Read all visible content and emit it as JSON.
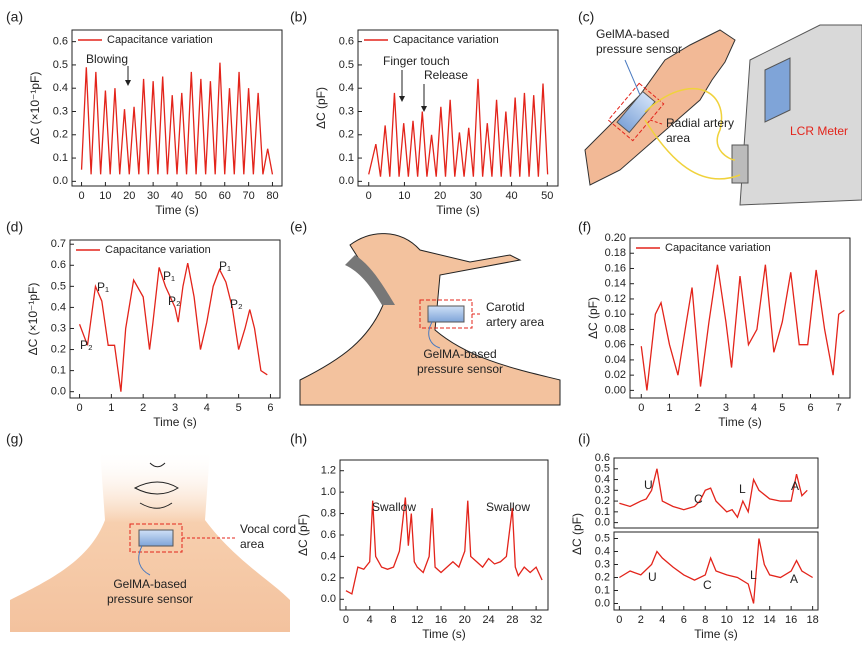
{
  "chart_data": [
    {
      "type": "line",
      "panel": "(a)",
      "xlabel": "Time (s)",
      "ylabel": "ΔC (×10⁻¹pF)",
      "x": [
        0,
        2,
        4,
        6,
        8,
        10,
        12,
        14,
        16,
        18,
        20,
        22,
        24,
        26,
        28,
        30,
        32,
        34,
        36,
        38,
        40,
        42,
        44,
        46,
        48,
        50,
        52,
        54,
        56,
        58,
        60,
        62,
        64,
        66,
        68,
        70,
        72,
        74,
        76,
        78,
        80
      ],
      "series": [
        {
          "name": "Capacitance variation",
          "color": "#e3241b",
          "values": [
            0.05,
            0.49,
            0.03,
            0.47,
            0.03,
            0.39,
            0.03,
            0.4,
            0.03,
            0.31,
            0.03,
            0.32,
            0.03,
            0.44,
            0.03,
            0.43,
            0.03,
            0.45,
            0.03,
            0.37,
            0.03,
            0.38,
            0.03,
            0.47,
            0.03,
            0.44,
            0.03,
            0.43,
            0.03,
            0.51,
            0.03,
            0.4,
            0.03,
            0.47,
            0.03,
            0.4,
            0.03,
            0.38,
            0.03,
            0.14,
            0.03
          ]
        }
      ],
      "xlim": [
        -4,
        84
      ],
      "xticks": [
        0,
        10,
        20,
        30,
        40,
        50,
        60,
        70,
        80
      ],
      "ylim": [
        -0.02,
        0.65
      ],
      "yticks": [
        {
          "value": 0,
          "label": "0.0"
        },
        0.1,
        0.2,
        0.3,
        0.4,
        0.5,
        0.6
      ],
      "annotations": [
        "Blowing"
      ]
    },
    {
      "type": "line",
      "panel": "(b)",
      "xlabel": "Time (s)",
      "ylabel": "ΔC (pF)",
      "x": [
        0,
        2,
        3.3,
        4.6,
        5.9,
        7.2,
        8.5,
        9.8,
        11.1,
        12.4,
        13.7,
        15,
        16.3,
        17.6,
        18.9,
        20.2,
        21.5,
        22.8,
        24.1,
        25.4,
        26.7,
        28,
        29.3,
        30.6,
        31.9,
        33.2,
        34.5,
        35.8,
        37.1,
        38.4,
        39.7,
        41,
        42.3,
        43.6,
        44.9,
        46.2,
        47.5,
        48.8,
        50.1
      ],
      "series": [
        {
          "name": "Capacitance variation",
          "color": "#e3241b",
          "values": [
            0.03,
            0.16,
            0.02,
            0.24,
            0.02,
            0.38,
            0.02,
            0.25,
            0.02,
            0.26,
            0.02,
            0.3,
            0.02,
            0.2,
            0.02,
            0.32,
            0.02,
            0.35,
            0.02,
            0.21,
            0.02,
            0.23,
            0.02,
            0.44,
            0.02,
            0.25,
            0.02,
            0.35,
            0.02,
            0.3,
            0.02,
            0.36,
            0.02,
            0.38,
            0.02,
            0.37,
            0.02,
            0.42,
            0.03
          ]
        }
      ],
      "xlim": [
        -3,
        53
      ],
      "xticks": [
        0,
        10,
        20,
        30,
        40,
        50
      ],
      "ylim": [
        -0.02,
        0.65
      ],
      "yticks": [
        {
          "value": 0,
          "label": "0.0"
        },
        0.1,
        0.2,
        0.3,
        0.4,
        0.5,
        0.6
      ],
      "annotations": [
        "Finger touch",
        "Release"
      ]
    },
    {
      "type": "line",
      "panel": "(d)",
      "xlabel": "Time (s)",
      "ylabel": "ΔC (×10⁻¹pF)",
      "x": [
        0,
        0.25,
        0.5,
        0.7,
        0.9,
        1.1,
        1.3,
        1.45,
        1.7,
        2.0,
        2.2,
        2.3,
        2.5,
        2.7,
        2.85,
        3.0,
        3.1,
        3.25,
        3.4,
        3.6,
        3.8,
        4.0,
        4.2,
        4.4,
        4.6,
        4.8,
        5.0,
        5.2,
        5.35,
        5.5,
        5.7,
        5.9
      ],
      "series": [
        {
          "name": "Capacitance variation",
          "color": "#e3241b",
          "values": [
            0.32,
            0.22,
            0.5,
            0.43,
            0.22,
            0.22,
            0.0,
            0.3,
            0.53,
            0.45,
            0.2,
            0.32,
            0.59,
            0.5,
            0.45,
            0.4,
            0.33,
            0.5,
            0.61,
            0.45,
            0.2,
            0.33,
            0.5,
            0.58,
            0.52,
            0.4,
            0.2,
            0.3,
            0.39,
            0.3,
            0.1,
            0.08
          ]
        }
      ],
      "xlim": [
        -0.3,
        6.3
      ],
      "xticks": [
        0,
        1,
        2,
        3,
        4,
        5,
        6
      ],
      "ylim": [
        -0.03,
        0.72
      ],
      "yticks": [
        {
          "value": 0,
          "label": "0.0"
        },
        0.1,
        0.2,
        0.3,
        0.4,
        0.5,
        0.6,
        0.7
      ],
      "annotations": [
        "P₁",
        "P₂",
        "P₁",
        "P₂",
        "P₁",
        "P₂"
      ]
    },
    {
      "type": "line",
      "panel": "(f)",
      "xlabel": "Time (s)",
      "ylabel": "ΔC (pF)",
      "x": [
        0,
        0.2,
        0.5,
        0.7,
        1.0,
        1.3,
        1.6,
        1.8,
        2.1,
        2.4,
        2.7,
        3.0,
        3.2,
        3.5,
        3.8,
        4.1,
        4.4,
        4.7,
        5.0,
        5.3,
        5.6,
        5.9,
        6.2,
        6.5,
        6.8,
        7.0,
        7.2
      ],
      "series": [
        {
          "name": "Capacitance variation",
          "color": "#e3241b",
          "values": [
            0.058,
            0.0,
            0.1,
            0.115,
            0.06,
            0.02,
            0.09,
            0.135,
            0.005,
            0.09,
            0.165,
            0.09,
            0.03,
            0.15,
            0.06,
            0.08,
            0.165,
            0.05,
            0.09,
            0.155,
            0.06,
            0.06,
            0.158,
            0.08,
            0.02,
            0.1,
            0.105
          ]
        }
      ],
      "xlim": [
        -0.4,
        7.4
      ],
      "xticks": [
        0,
        1,
        2,
        3,
        4,
        5,
        6,
        7
      ],
      "ylim": [
        -0.01,
        0.2
      ],
      "yticks": [
        {
          "value": 0,
          "label": "0.00"
        },
        0.02,
        0.04,
        0.06,
        0.08,
        {
          "value": 0.1,
          "label": "0.10"
        },
        0.12,
        0.14,
        0.16,
        0.18,
        {
          "value": 0.2,
          "label": "0.20"
        }
      ]
    },
    {
      "type": "line",
      "panel": "(h)",
      "xlabel": "Time (s)",
      "ylabel": "ΔC (pF)",
      "x": [
        0,
        1,
        2,
        3,
        4,
        4.5,
        5,
        6,
        7,
        8,
        9,
        10,
        10.5,
        11,
        11.5,
        12,
        13,
        14,
        14.5,
        15,
        16,
        17,
        18,
        19,
        20,
        20.5,
        21,
        22,
        23,
        24,
        25,
        26,
        27,
        28,
        28.5,
        29,
        30,
        31,
        32,
        33
      ],
      "series": [
        {
          "color": "#e3241b",
          "values": [
            0.08,
            0.05,
            0.3,
            0.28,
            0.35,
            0.92,
            0.4,
            0.3,
            0.28,
            0.3,
            0.45,
            0.95,
            0.5,
            0.8,
            0.35,
            0.3,
            0.25,
            0.4,
            0.85,
            0.3,
            0.25,
            0.3,
            0.35,
            0.3,
            0.45,
            0.92,
            0.4,
            0.35,
            0.3,
            0.38,
            0.33,
            0.35,
            0.4,
            0.85,
            0.3,
            0.22,
            0.3,
            0.25,
            0.3,
            0.18
          ]
        }
      ],
      "xlim": [
        -1,
        34
      ],
      "xticks": [
        0,
        4,
        8,
        12,
        16,
        20,
        24,
        28,
        32
      ],
      "ylim": [
        -0.1,
        1.3
      ],
      "yticks": [
        {
          "value": 0,
          "label": "0.0"
        },
        0.2,
        0.4,
        0.6,
        0.8,
        {
          "value": 1,
          "label": "1.0"
        },
        1.2
      ],
      "annotations": [
        "Swallow",
        "Swallow"
      ]
    },
    {
      "type": "line",
      "panel": "(i)",
      "ylabel": "ΔC (pF)",
      "x": [
        0,
        1,
        2,
        2.5,
        3,
        3.5,
        4,
        5,
        6,
        7,
        7.5,
        8,
        8.5,
        9,
        10,
        10.5,
        11,
        11.5,
        12,
        12.5,
        13,
        14,
        15,
        16,
        16.5,
        17,
        17.5
      ],
      "series": [
        {
          "color": "#e3241b",
          "values": [
            0.18,
            0.15,
            0.2,
            0.22,
            0.3,
            0.5,
            0.2,
            0.15,
            0.12,
            0.15,
            0.2,
            0.3,
            0.32,
            0.2,
            0.1,
            0.12,
            0.05,
            0.2,
            0.1,
            0.4,
            0.3,
            0.22,
            0.2,
            0.2,
            0.45,
            0.25,
            0.3
          ]
        }
      ],
      "xlim": [
        -0.5,
        18.5
      ],
      "ylim": [
        -0.05,
        0.6
      ],
      "yticks": [
        {
          "value": 0,
          "label": "0.0"
        },
        0.1,
        0.2,
        0.3,
        0.4,
        0.5,
        0.6
      ],
      "annotations": [
        "U",
        "C",
        "L",
        "A"
      ]
    },
    {
      "type": "line",
      "xlabel": "Time (s)",
      "x": [
        0,
        1,
        2,
        3,
        3.5,
        4,
        5,
        6,
        7,
        8,
        8.5,
        9,
        10,
        11,
        12,
        12.5,
        13,
        13.5,
        14,
        15,
        16,
        16.5,
        17,
        18
      ],
      "series": [
        {
          "color": "#e3241b",
          "values": [
            0.2,
            0.25,
            0.22,
            0.3,
            0.4,
            0.35,
            0.28,
            0.22,
            0.18,
            0.22,
            0.35,
            0.25,
            0.22,
            0.2,
            0.15,
            0.0,
            0.5,
            0.3,
            0.22,
            0.2,
            0.25,
            0.33,
            0.25,
            0.2
          ]
        }
      ],
      "xlim": [
        -0.5,
        18.5
      ],
      "xticks": [
        0,
        2,
        4,
        6,
        8,
        10,
        12,
        14,
        16,
        18
      ],
      "ylim": [
        -0.05,
        0.55
      ],
      "yticks": [
        {
          "value": 0,
          "label": "0.0"
        },
        0.1,
        0.2,
        0.3,
        0.4,
        0.5
      ],
      "annotations": [
        "U",
        "C",
        "L",
        "A"
      ]
    }
  ],
  "diagrams": [
    {
      "panel": "(c)",
      "sensor_label": [
        "GelMA-based",
        "pressure sensor"
      ],
      "area_label": [
        "Radial artery",
        "area"
      ],
      "device_label": "LCR Meter"
    },
    {
      "panel": "(e)",
      "area_label": [
        "Carotid",
        "artery area"
      ],
      "sensor_label": [
        "GelMA-based",
        "pressure sensor"
      ]
    },
    {
      "panel": "(g)",
      "area_label": [
        "Vocal cord",
        "area"
      ],
      "sensor_label": [
        "GelMA-based",
        "pressure sensor"
      ]
    }
  ]
}
